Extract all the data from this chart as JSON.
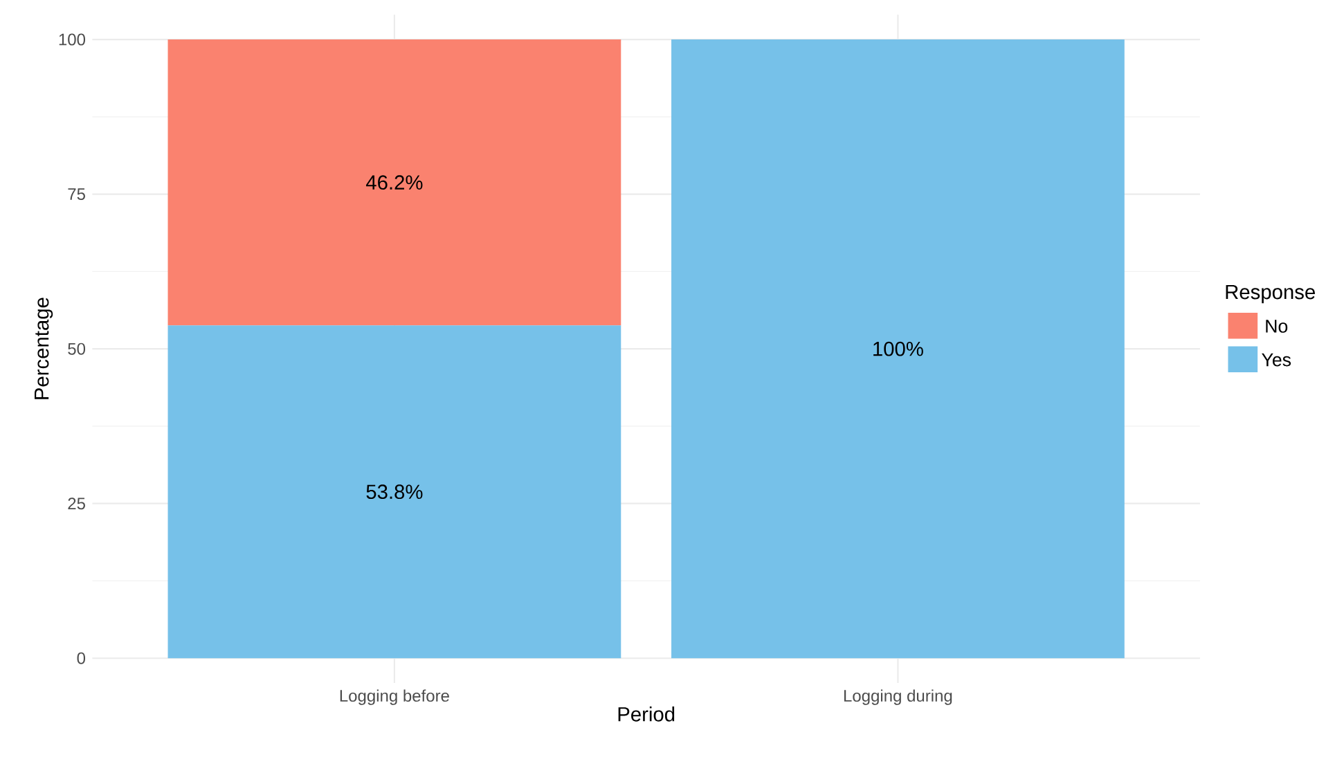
{
  "chart_data": {
    "type": "bar",
    "stacked": true,
    "xlabel": "Period",
    "ylabel": "Percentage",
    "legend_title": "Response",
    "categories": [
      "Logging  before",
      "Logging  during"
    ],
    "series": [
      {
        "name": "Yes",
        "color": "#76c1e9",
        "values": [
          53.8,
          100
        ],
        "value_labels": [
          "53.8%",
          "100%"
        ]
      },
      {
        "name": "No",
        "color": "#fa826f",
        "values": [
          46.2,
          0
        ],
        "value_labels": [
          "46.2%",
          null
        ]
      }
    ],
    "ylim": [
      -4,
      104
    ],
    "yticks": [
      0,
      25,
      50,
      75,
      100
    ],
    "grid": true,
    "legend": "right"
  }
}
